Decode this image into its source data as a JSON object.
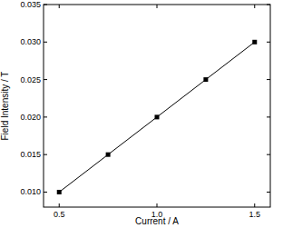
{
  "chart_data": {
    "type": "line",
    "x_label": "Current / A",
    "y_label": "Field Intensity / T",
    "x": [
      0.5,
      0.75,
      1.0,
      1.25,
      1.5
    ],
    "values": [
      0.01,
      0.015,
      0.02,
      0.025,
      0.03
    ],
    "color": "#000000",
    "marker": "square",
    "line_style": "solid",
    "xlim": [
      0.42,
      1.58
    ],
    "ylim": [
      0.008,
      0.035
    ],
    "xticks": [
      0.5,
      {
        "value": 1,
        "label": "1.0"
      },
      1.5
    ],
    "yticks": [
      {
        "value": 0.01,
        "label": "0.010"
      },
      0.015,
      {
        "value": 0.02,
        "label": "0.020"
      },
      0.025,
      {
        "value": 0.03,
        "label": "0.030"
      },
      0.035
    ],
    "grid": false
  }
}
